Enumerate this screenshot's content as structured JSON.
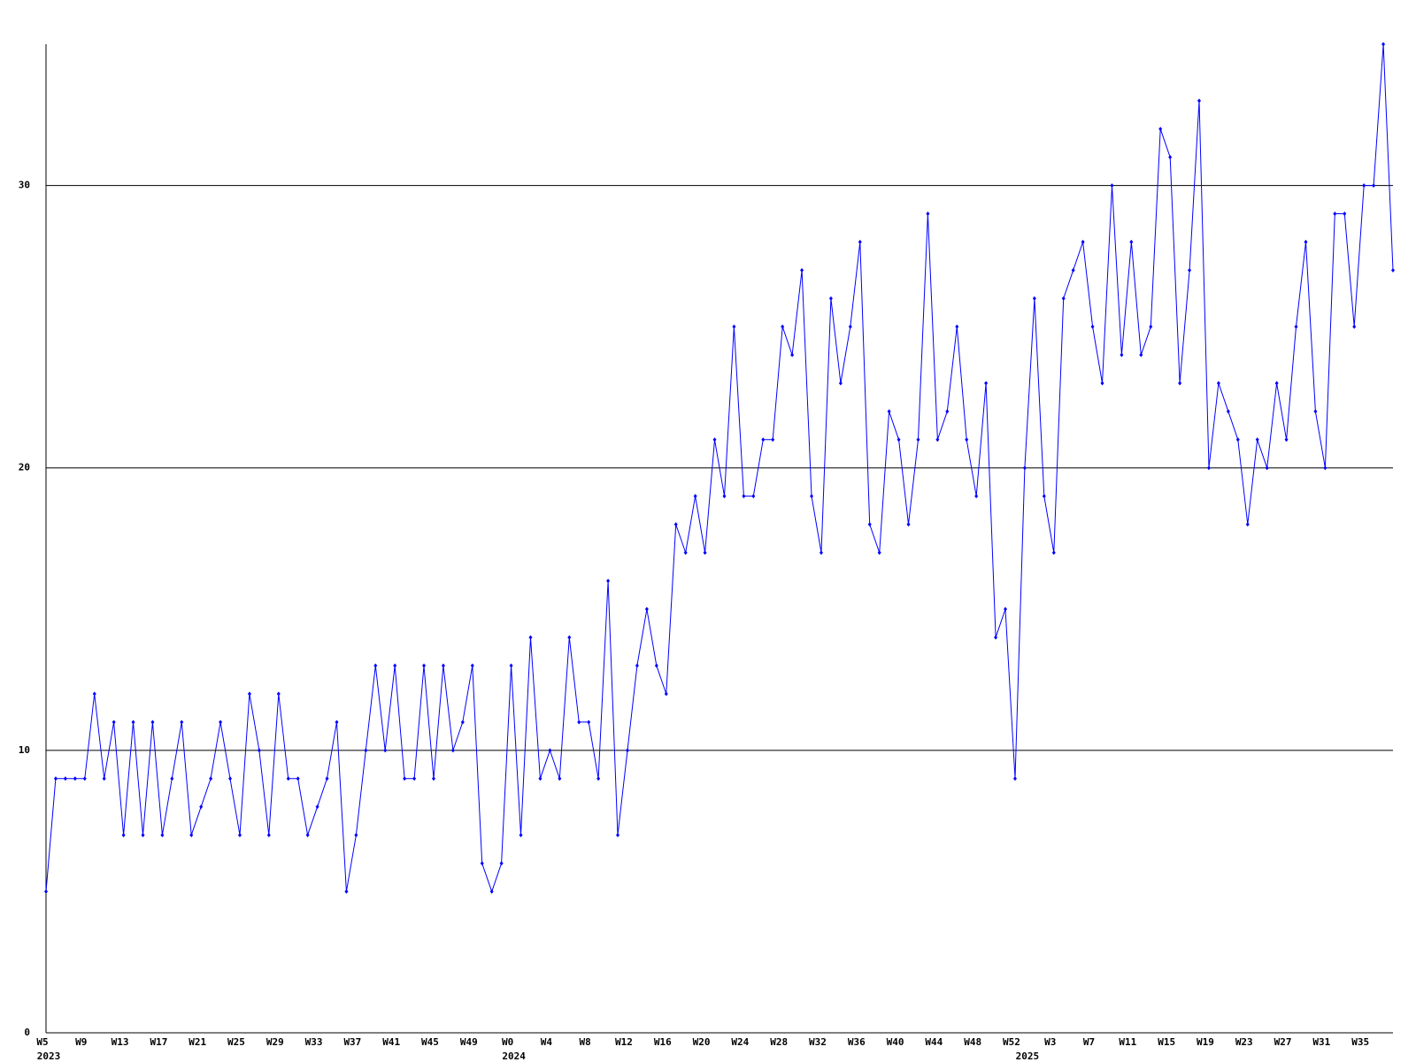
{
  "chart_data": {
    "type": "line",
    "categories": [
      "W5",
      null,
      null,
      null,
      "W9",
      null,
      null,
      null,
      "W13",
      null,
      null,
      null,
      "W17",
      null,
      null,
      null,
      "W21",
      null,
      null,
      null,
      "W25",
      null,
      null,
      null,
      "W29",
      null,
      null,
      null,
      "W33",
      null,
      null,
      null,
      "W37",
      null,
      null,
      null,
      "W41",
      null,
      null,
      null,
      "W45",
      null,
      null,
      null,
      "W49",
      null,
      null,
      null,
      "W0",
      null,
      null,
      null,
      "W4",
      null,
      null,
      null,
      "W8",
      null,
      null,
      null,
      "W12",
      null,
      null,
      null,
      "W16",
      null,
      null,
      null,
      "W20",
      null,
      null,
      null,
      "W24",
      null,
      null,
      null,
      "W28",
      null,
      null,
      null,
      "W32",
      null,
      null,
      null,
      "W36",
      null,
      null,
      null,
      "W40",
      null,
      null,
      null,
      "W44",
      null,
      null,
      null,
      "W48",
      null,
      null,
      null,
      "W52",
      null,
      null,
      null,
      "W3",
      null,
      null,
      null,
      "W7",
      null,
      null,
      null,
      "W11",
      null,
      null,
      null,
      "W15",
      null,
      null,
      null,
      "W19",
      null,
      null,
      null,
      "W23",
      null,
      null,
      null,
      "W27",
      null,
      null,
      null,
      "W31",
      null,
      null,
      null,
      "W35",
      null,
      null,
      null
    ],
    "year_labels": [
      {
        "index": 0,
        "label": "2023"
      },
      {
        "index": 48,
        "label": "2024"
      },
      {
        "index": 101,
        "label": "2025"
      }
    ],
    "series": [
      {
        "color": "#0000ff",
        "values": [
          5,
          9,
          9,
          9,
          9,
          12,
          9,
          11,
          7,
          11,
          7,
          11,
          7,
          9,
          11,
          7,
          8,
          9,
          11,
          9,
          7,
          12,
          10,
          7,
          12,
          9,
          9,
          7,
          8,
          9,
          11,
          5,
          7,
          10,
          13,
          10,
          13,
          9,
          9,
          13,
          9,
          13,
          10,
          11,
          13,
          6,
          5,
          6,
          13,
          7,
          14,
          9,
          10,
          9,
          14,
          11,
          11,
          9,
          16,
          7,
          10,
          13,
          15,
          13,
          12,
          18,
          17,
          19,
          17,
          21,
          19,
          25,
          19,
          19,
          21,
          21,
          25,
          24,
          27,
          19,
          17,
          26,
          23,
          25,
          28,
          18,
          17,
          22,
          21,
          18,
          21,
          29,
          21,
          22,
          25,
          21,
          19,
          23,
          14,
          15,
          9,
          20,
          26,
          19,
          17,
          26,
          27,
          28,
          25,
          23,
          30,
          24,
          28,
          24,
          25,
          32,
          31,
          23,
          27,
          33,
          20,
          23,
          22,
          21,
          18,
          21,
          20,
          23,
          21,
          25,
          28,
          22,
          20,
          29,
          29,
          25,
          30,
          30,
          35,
          27
        ]
      }
    ],
    "ylim": [
      0,
      35
    ],
    "yticks": [
      0,
      10,
      20,
      30
    ],
    "grid": true
  }
}
